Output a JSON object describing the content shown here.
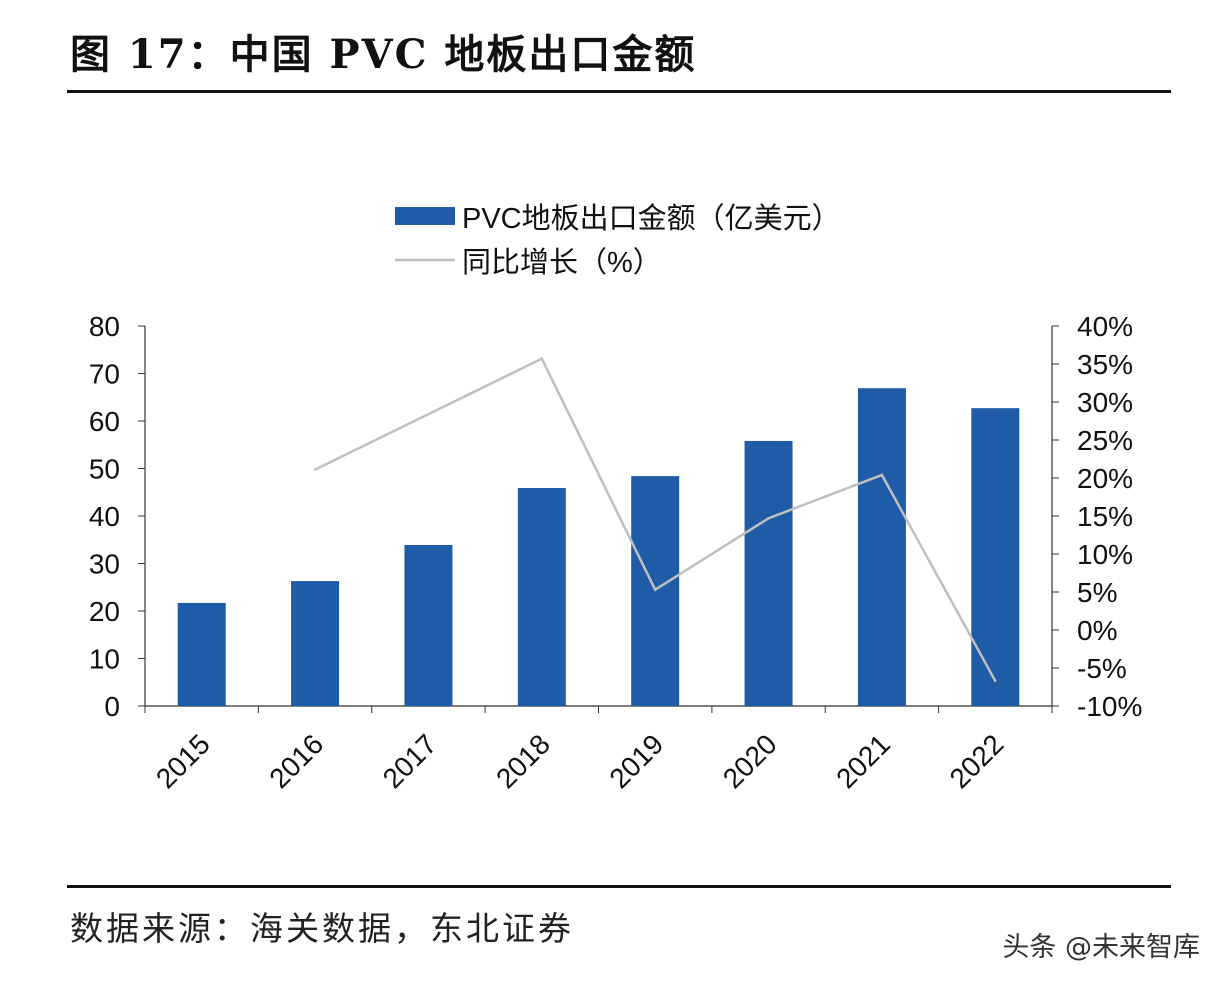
{
  "title": "图 17：中国 PVC 地板出口金额",
  "source": "数据来源：海关数据，东北证券",
  "watermark": "头条 @未来智库",
  "chart_data": {
    "type": "bar",
    "categories": [
      "2015",
      "2016",
      "2017",
      "2018",
      "2019",
      "2020",
      "2021",
      "2022"
    ],
    "series": [
      {
        "name": "PVC地板出口金额（亿美元）",
        "type": "bar",
        "axis": "left",
        "color": "#1F5CA8",
        "values": [
          21.7,
          26.3,
          33.9,
          45.9,
          48.4,
          55.8,
          66.9,
          62.7
        ]
      },
      {
        "name": "同比增长（%）",
        "type": "line",
        "axis": "right",
        "color": "#BFBFBF",
        "values": [
          null,
          21.1,
          null,
          35.7,
          5.3,
          14.7,
          20.4,
          -6.7
        ]
      }
    ],
    "left_axis": {
      "min": 0,
      "max": 80,
      "ticks": [
        "0",
        "10",
        "20",
        "30",
        "40",
        "50",
        "60",
        "70",
        "80"
      ]
    },
    "right_axis": {
      "min": -10,
      "max": 40,
      "ticks": [
        "-10%",
        "-5%",
        "0%",
        "5%",
        "10%",
        "15%",
        "20%",
        "25%",
        "30%",
        "35%",
        "40%"
      ]
    },
    "legend_position": "top-center",
    "grid": false
  }
}
